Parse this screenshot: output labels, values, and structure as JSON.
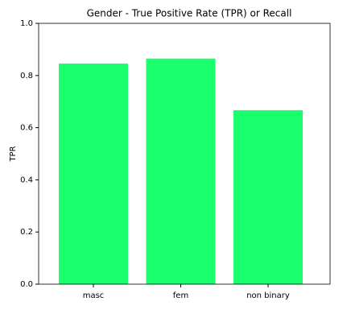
{
  "chart_data": {
    "type": "bar",
    "title": "Gender - True Positive Rate (TPR) or Recall",
    "y_label": "TPR",
    "categories": [
      "masc",
      "fem",
      "non binary"
    ],
    "values": [
      0.846,
      0.865,
      0.667
    ],
    "color": "#1aff6e",
    "ylim": [
      0,
      1
    ],
    "yticks": [
      {
        "value": 0,
        "label": "0.0"
      },
      0.2,
      0.4,
      0.6,
      0.8,
      {
        "value": 1,
        "label": "1.0"
      }
    ],
    "grid": false
  }
}
